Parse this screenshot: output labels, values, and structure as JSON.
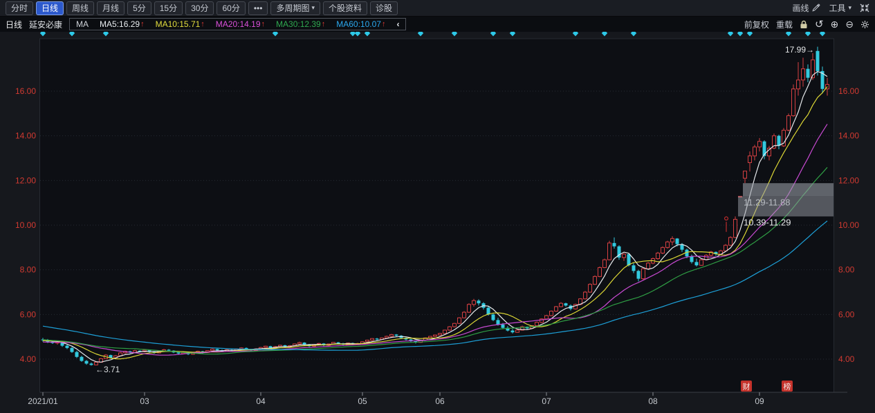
{
  "toolbar": {
    "periods": [
      {
        "label": "分时",
        "selected": false
      },
      {
        "label": "日线",
        "selected": true
      },
      {
        "label": "周线",
        "selected": false
      },
      {
        "label": "月线",
        "selected": false
      },
      {
        "label": "5分",
        "selected": false
      },
      {
        "label": "15分",
        "selected": false
      },
      {
        "label": "30分",
        "selected": false
      },
      {
        "label": "60分",
        "selected": false
      },
      {
        "label": "•••",
        "selected": false
      },
      {
        "label": "多周期图",
        "selected": false,
        "caret": true
      },
      {
        "label": "个股资料",
        "selected": false
      },
      {
        "label": "诊股",
        "selected": false
      }
    ],
    "draw_line_label": "画线",
    "tools_label": "工具"
  },
  "ma_bar": {
    "period_label": "日线",
    "stock_name": "延安必康",
    "ma_prefix": "MA",
    "collapse_arrow": "‹",
    "arrow_up": "↑",
    "arrow_color": "#e23b35",
    "items": [
      {
        "label": "MA5:16.29",
        "color": "#e9edf0"
      },
      {
        "label": "MA10:15.71",
        "color": "#e3de3d"
      },
      {
        "label": "MA20:14.19",
        "color": "#da50da"
      },
      {
        "label": "MA30:12.39",
        "color": "#2fa84f"
      },
      {
        "label": "MA60:10.07",
        "color": "#2ba8ee"
      }
    ],
    "adjust_label": "前复权",
    "reload_label": "重载"
  },
  "chart_data": {
    "type": "candlestick",
    "stock": "延安必康",
    "period": "daily",
    "axis_color": "#d23a31",
    "x_label_color": "#c5c9ce",
    "up_color": "#d64042",
    "down_color": "#33c9de",
    "plot_bg": "#0d0f14",
    "y_ticks": [
      {
        "value": 4,
        "label": "4.00"
      },
      {
        "value": 6,
        "label": "6.00"
      },
      {
        "value": 8,
        "label": "8.00"
      },
      {
        "value": 10,
        "label": "10.00"
      },
      {
        "value": 12,
        "label": "12.00"
      },
      {
        "value": 14,
        "label": "14.00"
      },
      {
        "value": 16,
        "label": "16.00"
      }
    ],
    "x_ticks": [
      {
        "label": "2021/01",
        "index": 0
      },
      {
        "label": "03",
        "index": 21
      },
      {
        "label": "04",
        "index": 45
      },
      {
        "label": "05",
        "index": 66
      },
      {
        "label": "06",
        "index": 82
      },
      {
        "label": "07",
        "index": 104
      },
      {
        "label": "08",
        "index": 126
      },
      {
        "label": "09",
        "index": 148
      }
    ],
    "ma_lines": [
      {
        "name": "MA5",
        "window": 5,
        "color": "#e6e9ec"
      },
      {
        "name": "MA10",
        "window": 10,
        "color": "#ddd835"
      },
      {
        "name": "MA20",
        "window": 20,
        "color": "#c84ad2"
      },
      {
        "name": "MA30",
        "window": 30,
        "color": "#2f9e44"
      },
      {
        "name": "MA60",
        "window": 60,
        "color": "#1da0d8"
      }
    ],
    "history_closes": [
      6.9,
      6.82,
      6.86,
      6.74,
      6.65,
      6.7,
      6.58,
      6.48,
      6.52,
      6.4,
      6.32,
      6.38,
      6.25,
      6.15,
      6.2,
      6.08,
      6.0,
      6.05,
      5.92,
      5.85,
      5.9,
      5.78,
      5.7,
      5.75,
      5.62,
      5.55,
      5.6,
      5.48,
      5.4,
      5.45,
      5.32,
      5.25,
      5.3,
      5.18,
      5.1,
      5.15,
      5.05,
      4.98,
      5.02,
      4.92,
      4.85,
      4.9,
      4.8,
      4.72,
      4.76,
      4.68,
      4.6,
      4.65,
      4.56,
      4.5,
      4.85,
      4.8,
      4.84,
      4.78,
      4.88,
      4.84,
      4.8,
      4.86,
      4.82,
      4.85
    ],
    "candles": [
      [
        4.88,
        4.95,
        4.78,
        4.85
      ],
      [
        4.85,
        4.9,
        4.72,
        4.78
      ],
      [
        4.78,
        4.85,
        4.68,
        4.72
      ],
      [
        4.72,
        4.8,
        4.65,
        4.76
      ],
      [
        4.76,
        4.78,
        4.55,
        4.6
      ],
      [
        4.6,
        4.65,
        4.45,
        4.5
      ],
      [
        4.5,
        4.55,
        4.28,
        4.32
      ],
      [
        4.32,
        4.38,
        4.05,
        4.1
      ],
      [
        4.1,
        4.15,
        3.88,
        3.92
      ],
      [
        3.92,
        3.96,
        3.75,
        3.8
      ],
      [
        3.8,
        3.85,
        3.71,
        3.74
      ],
      [
        3.74,
        3.9,
        3.72,
        3.86
      ],
      [
        3.86,
        4.05,
        3.84,
        4.02
      ],
      [
        4.02,
        4.22,
        4.0,
        4.18
      ],
      [
        4.18,
        4.2,
        4.02,
        4.06
      ],
      [
        4.06,
        4.18,
        4.04,
        4.15
      ],
      [
        4.15,
        4.32,
        4.12,
        4.28
      ],
      [
        4.28,
        4.38,
        4.24,
        4.35
      ],
      [
        4.35,
        4.38,
        4.26,
        4.3
      ],
      [
        4.3,
        4.42,
        4.28,
        4.38
      ],
      [
        4.38,
        4.4,
        4.3,
        4.33
      ],
      [
        4.33,
        4.44,
        4.3,
        4.4
      ],
      [
        4.4,
        4.43,
        4.28,
        4.32
      ],
      [
        4.32,
        4.36,
        4.24,
        4.28
      ],
      [
        4.28,
        4.38,
        4.26,
        4.35
      ],
      [
        4.35,
        4.46,
        4.32,
        4.42
      ],
      [
        4.42,
        4.45,
        4.34,
        4.38
      ],
      [
        4.38,
        4.4,
        4.27,
        4.3
      ],
      [
        4.3,
        4.34,
        4.21,
        4.25
      ],
      [
        4.25,
        4.33,
        4.22,
        4.3
      ],
      [
        4.3,
        4.32,
        4.18,
        4.22
      ],
      [
        4.22,
        4.31,
        4.19,
        4.28
      ],
      [
        4.28,
        4.38,
        4.25,
        4.35
      ],
      [
        4.35,
        4.37,
        4.26,
        4.3
      ],
      [
        4.3,
        4.4,
        4.28,
        4.38
      ],
      [
        4.38,
        4.48,
        4.35,
        4.45
      ],
      [
        4.45,
        4.47,
        4.36,
        4.4
      ],
      [
        4.4,
        4.43,
        4.31,
        4.35
      ],
      [
        4.35,
        4.45,
        4.33,
        4.42
      ],
      [
        4.42,
        4.44,
        4.34,
        4.38
      ],
      [
        4.38,
        4.48,
        4.36,
        4.45
      ],
      [
        4.45,
        4.53,
        4.42,
        4.5
      ],
      [
        4.5,
        4.52,
        4.4,
        4.44
      ],
      [
        4.44,
        4.46,
        4.36,
        4.4
      ],
      [
        4.4,
        4.49,
        4.38,
        4.46
      ],
      [
        4.46,
        4.55,
        4.44,
        4.52
      ],
      [
        4.52,
        4.6,
        4.49,
        4.58
      ],
      [
        4.58,
        4.6,
        4.46,
        4.5
      ],
      [
        4.5,
        4.59,
        4.48,
        4.56
      ],
      [
        4.56,
        4.65,
        4.53,
        4.62
      ],
      [
        4.62,
        4.64,
        4.51,
        4.55
      ],
      [
        4.55,
        4.63,
        4.52,
        4.6
      ],
      [
        4.6,
        4.7,
        4.57,
        4.68
      ],
      [
        4.68,
        4.78,
        4.65,
        4.74
      ],
      [
        4.74,
        4.76,
        4.61,
        4.65
      ],
      [
        4.65,
        4.68,
        4.54,
        4.58
      ],
      [
        4.58,
        4.66,
        4.55,
        4.64
      ],
      [
        4.64,
        4.73,
        4.61,
        4.7
      ],
      [
        4.7,
        4.72,
        4.58,
        4.62
      ],
      [
        4.62,
        4.7,
        4.59,
        4.68
      ],
      [
        4.68,
        4.77,
        4.65,
        4.75
      ],
      [
        4.75,
        4.77,
        4.66,
        4.7
      ],
      [
        4.7,
        4.73,
        4.61,
        4.65
      ],
      [
        4.65,
        4.74,
        4.62,
        4.72
      ],
      [
        4.72,
        4.74,
        4.62,
        4.66
      ],
      [
        4.66,
        4.73,
        4.63,
        4.7
      ],
      [
        4.7,
        4.8,
        4.67,
        4.78
      ],
      [
        4.78,
        4.87,
        4.75,
        4.85
      ],
      [
        4.85,
        4.94,
        4.82,
        4.92
      ],
      [
        4.92,
        4.95,
        4.84,
        4.88
      ],
      [
        4.88,
        4.97,
        4.85,
        4.95
      ],
      [
        4.95,
        5.05,
        4.92,
        5.02
      ],
      [
        5.02,
        5.13,
        4.99,
        5.1
      ],
      [
        5.1,
        5.12,
        5.0,
        5.05
      ],
      [
        5.05,
        5.08,
        4.91,
        4.95
      ],
      [
        4.95,
        4.98,
        4.84,
        4.88
      ],
      [
        4.88,
        4.92,
        4.76,
        4.8
      ],
      [
        4.8,
        4.84,
        4.7,
        4.75
      ],
      [
        4.75,
        4.87,
        4.73,
        4.85
      ],
      [
        4.85,
        4.97,
        4.83,
        4.95
      ],
      [
        4.95,
        5.04,
        4.92,
        5.02
      ],
      [
        5.02,
        5.1,
        4.99,
        5.08
      ],
      [
        5.08,
        5.18,
        5.05,
        5.15
      ],
      [
        5.15,
        5.32,
        5.12,
        5.3
      ],
      [
        5.3,
        5.48,
        5.27,
        5.45
      ],
      [
        5.45,
        5.62,
        5.42,
        5.6
      ],
      [
        5.6,
        5.88,
        5.57,
        5.85
      ],
      [
        5.85,
        6.15,
        5.82,
        6.1
      ],
      [
        6.1,
        6.5,
        6.07,
        6.45
      ],
      [
        6.45,
        6.7,
        6.35,
        6.62
      ],
      [
        6.62,
        6.68,
        6.4,
        6.5
      ],
      [
        6.5,
        6.55,
        6.22,
        6.3
      ],
      [
        6.3,
        6.38,
        5.95,
        6.0
      ],
      [
        6.0,
        6.05,
        5.7,
        5.75
      ],
      [
        5.75,
        5.85,
        5.5,
        5.55
      ],
      [
        5.55,
        5.62,
        5.35,
        5.4
      ],
      [
        5.4,
        5.48,
        5.24,
        5.28
      ],
      [
        5.28,
        5.35,
        5.15,
        5.2
      ],
      [
        5.2,
        5.35,
        5.18,
        5.3
      ],
      [
        5.3,
        5.5,
        5.28,
        5.45
      ],
      [
        5.45,
        5.47,
        5.32,
        5.38
      ],
      [
        5.38,
        5.52,
        5.35,
        5.5
      ],
      [
        5.5,
        5.68,
        5.48,
        5.65
      ],
      [
        5.65,
        5.83,
        5.62,
        5.8
      ],
      [
        5.8,
        5.98,
        5.77,
        5.95
      ],
      [
        5.95,
        6.18,
        5.92,
        6.15
      ],
      [
        6.15,
        6.38,
        6.12,
        6.35
      ],
      [
        6.35,
        6.55,
        6.32,
        6.5
      ],
      [
        6.5,
        6.53,
        6.35,
        6.4
      ],
      [
        6.4,
        6.45,
        6.18,
        6.25
      ],
      [
        6.25,
        6.48,
        6.22,
        6.45
      ],
      [
        6.45,
        6.73,
        6.42,
        6.7
      ],
      [
        6.7,
        7.05,
        6.67,
        7.0
      ],
      [
        7.0,
        7.4,
        6.97,
        7.35
      ],
      [
        7.35,
        7.75,
        7.32,
        7.7
      ],
      [
        7.7,
        8.15,
        7.67,
        8.1
      ],
      [
        8.1,
        8.5,
        8.07,
        8.45
      ],
      [
        8.45,
        9.3,
        8.42,
        9.2
      ],
      [
        9.2,
        9.45,
        8.95,
        9.05
      ],
      [
        9.05,
        9.1,
        8.45,
        8.55
      ],
      [
        8.55,
        8.75,
        8.4,
        8.7
      ],
      [
        8.7,
        8.72,
        8.15,
        8.2
      ],
      [
        8.2,
        8.3,
        7.85,
        7.95
      ],
      [
        7.95,
        8.0,
        7.48,
        7.6
      ],
      [
        7.6,
        8.1,
        7.55,
        8.05
      ],
      [
        8.05,
        8.35,
        8.0,
        8.3
      ],
      [
        8.3,
        8.55,
        8.25,
        8.5
      ],
      [
        8.5,
        8.8,
        8.45,
        8.75
      ],
      [
        8.75,
        9.05,
        8.7,
        9.0
      ],
      [
        9.0,
        9.3,
        8.95,
        9.25
      ],
      [
        9.25,
        9.5,
        9.1,
        9.4
      ],
      [
        9.4,
        9.42,
        9.05,
        9.15
      ],
      [
        9.15,
        9.2,
        8.8,
        8.9
      ],
      [
        8.9,
        8.95,
        8.52,
        8.6
      ],
      [
        8.6,
        8.68,
        8.28,
        8.35
      ],
      [
        8.35,
        8.5,
        8.15,
        8.2
      ],
      [
        8.2,
        8.5,
        8.18,
        8.45
      ],
      [
        8.45,
        8.7,
        8.42,
        8.65
      ],
      [
        8.65,
        8.85,
        8.6,
        8.8
      ],
      [
        8.8,
        8.82,
        8.62,
        8.7
      ],
      [
        8.7,
        8.9,
        8.66,
        8.85
      ],
      [
        8.85,
        9.15,
        8.82,
        9.1
      ],
      [
        9.1,
        9.5,
        9.07,
        9.45
      ],
      [
        9.45,
        10.39,
        9.42,
        10.26
      ],
      [
        11.29,
        11.29,
        11.29,
        11.29
      ],
      [
        12.1,
        12.42,
        11.88,
        12.42
      ],
      [
        12.8,
        13.3,
        12.4,
        13.1
      ],
      [
        13.1,
        13.6,
        12.9,
        13.5
      ],
      [
        13.5,
        13.9,
        13.3,
        13.75
      ],
      [
        13.75,
        13.8,
        12.95,
        13.1
      ],
      [
        13.1,
        13.55,
        12.9,
        13.45
      ],
      [
        13.45,
        14.1,
        13.4,
        14.0
      ],
      [
        14.0,
        14.05,
        13.4,
        13.55
      ],
      [
        13.55,
        14.35,
        13.5,
        14.25
      ],
      [
        14.25,
        15.0,
        14.2,
        14.9
      ],
      [
        14.9,
        16.3,
        14.85,
        16.1
      ],
      [
        16.1,
        17.3,
        15.8,
        16.5
      ],
      [
        16.5,
        17.5,
        16.2,
        17.0
      ],
      [
        17.0,
        17.2,
        16.4,
        16.6
      ],
      [
        16.6,
        17.7,
        16.5,
        17.4
      ],
      [
        17.8,
        17.99,
        16.7,
        16.9
      ],
      [
        16.9,
        17.1,
        15.9,
        16.1
      ],
      [
        16.1,
        16.6,
        15.8,
        16.3
      ]
    ],
    "gaps": [
      {
        "range_label": "10.39-11.29",
        "lo": 10.39,
        "hi": 11.29,
        "start_index": 144,
        "opacity": 0.5,
        "label_color": "#e6e8ea"
      },
      {
        "range_label": "11.29-11.88",
        "lo": 11.29,
        "hi": 11.88,
        "start_index": 145,
        "opacity": 0.58,
        "label_color": "#b9bdc3"
      }
    ],
    "high_annotation": "17.99→",
    "high_index": 160,
    "low_annotation": "←3.71",
    "low_index": 10,
    "event_marker_indices": [
      0,
      6,
      13,
      48,
      64,
      65,
      67,
      78,
      85,
      93,
      97,
      110,
      116,
      122,
      142,
      144,
      146,
      154,
      158,
      161
    ],
    "event_marker_color": "#2ec9e8",
    "badges": [
      {
        "text": "财",
        "x": 1079
      },
      {
        "text": "榜",
        "x": 1138
      }
    ],
    "badge_color": "#c5322b"
  }
}
